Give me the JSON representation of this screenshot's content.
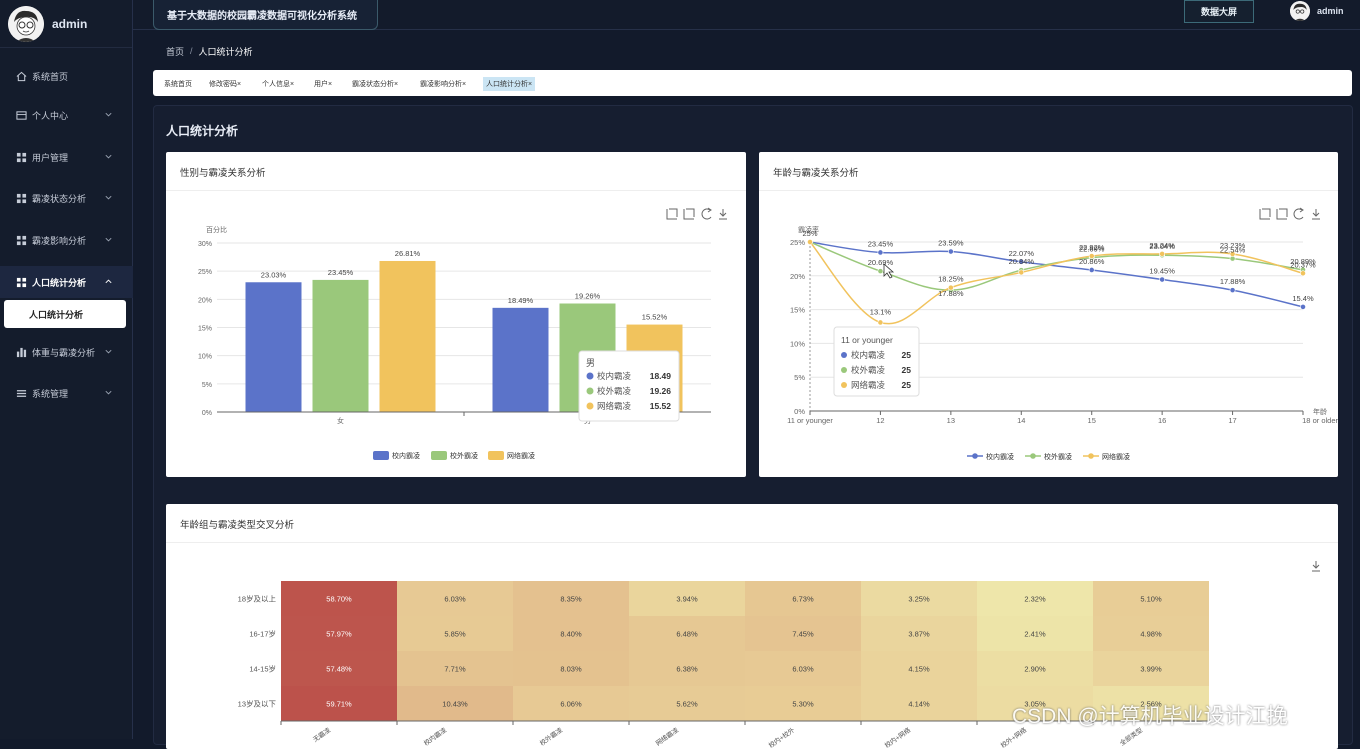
{
  "sidebar": {
    "username": "admin",
    "menu": [
      {
        "label": "系统首页",
        "icon": "home-icon"
      },
      {
        "label": "个人中心",
        "icon": "profile-card-icon"
      },
      {
        "label": "用户管理",
        "icon": "grid-icon"
      },
      {
        "label": "霸凌状态分析",
        "icon": "grid-icon"
      },
      {
        "label": "霸凌影响分析",
        "icon": "grid-icon"
      },
      {
        "label": "人口统计分析",
        "icon": "grid-icon"
      },
      {
        "label": "体重与霸凌分析",
        "icon": "bar-chart-icon"
      },
      {
        "label": "系统管理",
        "icon": "list-icon"
      }
    ],
    "active_sub": "人口统计分析"
  },
  "header": {
    "system_title": "基于大数据的校园霸凌数据可视化分析系统",
    "screen_button": "数据大屏",
    "username": "admin"
  },
  "breadcrumb": {
    "home": "首页",
    "separator": "/",
    "current": "人口统计分析"
  },
  "tabs": [
    {
      "label": "系统首页",
      "closable": ""
    },
    {
      "label": "修改密码",
      "closable": "×"
    },
    {
      "label": "个人信息",
      "closable": "×"
    },
    {
      "label": "用户",
      "closable": "×"
    },
    {
      "label": "霸凌状态分析",
      "closable": "×"
    },
    {
      "label": "霸凌影响分析",
      "closable": "×"
    },
    {
      "label": "人口统计分析",
      "closable": "×"
    }
  ],
  "page": {
    "title": "人口统计分析"
  },
  "cards": {
    "gender": {
      "title": "性别与霸凌关系分析"
    },
    "age": {
      "title": "年龄与霸凌关系分析"
    },
    "heat": {
      "title": "年龄组与霸凌类型交叉分析"
    }
  },
  "colors": {
    "blue": "#5b73c9",
    "green": "#9ac87b",
    "yellow": "#f1c35d"
  },
  "watermark": "CSDN @计算机毕业设计江挽",
  "chart_data": [
    {
      "type": "bar",
      "title": "性别与霸凌关系分析",
      "ylabel": "百分比",
      "ylim": [
        0,
        30
      ],
      "yticks": [
        "0%",
        "5%",
        "10%",
        "15%",
        "20%",
        "25%",
        "30%"
      ],
      "categories": [
        "女",
        "男"
      ],
      "series": [
        {
          "name": "校内霸凌",
          "values": [
            23.03,
            18.49
          ],
          "labels": [
            "23.03%",
            "18.49%"
          ]
        },
        {
          "name": "校外霸凌",
          "values": [
            23.45,
            19.26
          ],
          "labels": [
            "23.45%",
            "19.26%"
          ]
        },
        {
          "name": "网络霸凌",
          "values": [
            26.81,
            15.52
          ],
          "labels": [
            "26.81%",
            "15.52%"
          ]
        }
      ],
      "tooltip": {
        "title": "男",
        "rows": [
          {
            "name": "校内霸凌",
            "value": "18.49"
          },
          {
            "name": "校外霸凌",
            "value": "19.26"
          },
          {
            "name": "网络霸凌",
            "value": "15.52"
          }
        ]
      }
    },
    {
      "type": "line",
      "title": "年龄与霸凌关系分析",
      "ylabel": "霸凌率",
      "xlabel": "年龄",
      "ylim": [
        0,
        25
      ],
      "yticks": [
        "0%",
        "5%",
        "10%",
        "15%",
        "20%",
        "25%"
      ],
      "categories": [
        "11 or younger",
        "12",
        "13",
        "14",
        "15",
        "16",
        "17",
        "18 or older"
      ],
      "series": [
        {
          "name": "校内霸凌",
          "values": [
            25,
            23.45,
            23.59,
            22.07,
            20.86,
            19.45,
            17.88,
            15.4
          ],
          "labels": [
            "25%",
            "23.45%",
            "23.59%",
            "22.07%",
            "20.86%",
            "19.45%",
            "17.88%",
            "15.4%"
          ]
        },
        {
          "name": "校外霸凌",
          "values": [
            25,
            20.69,
            17.88,
            20.84,
            22.69,
            23.04,
            22.54,
            20.89
          ],
          "labels": [
            "",
            "20.69%",
            "17.88%",
            "20.84%",
            "22.69%",
            "23.04%",
            "22.54%",
            "20.89%"
          ]
        },
        {
          "name": "网络霸凌",
          "values": [
            25,
            13.1,
            18.25,
            20.5,
            22.92,
            23.24,
            23.23,
            20.37
          ],
          "labels": [
            "",
            "13.1%",
            "18.25%",
            "",
            "22.92%",
            "23.24%",
            "23.23%",
            "20.37%"
          ]
        }
      ],
      "tooltip": {
        "title": "11 or younger",
        "rows": [
          {
            "name": "校内霸凌",
            "value": "25"
          },
          {
            "name": "校外霸凌",
            "value": "25"
          },
          {
            "name": "网络霸凌",
            "value": "25"
          }
        ]
      }
    },
    {
      "type": "heatmap",
      "title": "年龄组与霸凌类型交叉分析",
      "rows": [
        "18岁及以上",
        "16-17岁",
        "14-15岁",
        "13岁及以下"
      ],
      "columns": [
        "无霸凌",
        "校内霸凌",
        "校外霸凌",
        "网络霸凌",
        "校内+校外",
        "校内+网络",
        "校外+网络",
        "全部类型"
      ],
      "values": [
        [
          58.7,
          6.03,
          8.35,
          3.94,
          6.73,
          3.25,
          2.32,
          5.1
        ],
        [
          57.97,
          5.85,
          8.4,
          6.48,
          7.45,
          3.87,
          2.41,
          4.98
        ],
        [
          57.48,
          7.71,
          8.03,
          6.38,
          6.03,
          4.15,
          2.9,
          3.99
        ],
        [
          59.71,
          10.43,
          6.06,
          5.62,
          5.3,
          4.14,
          3.05,
          2.56
        ]
      ],
      "labels": [
        [
          "58.70%",
          "6.03%",
          "8.35%",
          "3.94%",
          "6.73%",
          "3.25%",
          "2.32%",
          "5.10%"
        ],
        [
          "57.97%",
          "5.85%",
          "8.40%",
          "6.48%",
          "7.45%",
          "3.87%",
          "2.41%",
          "4.98%"
        ],
        [
          "57.48%",
          "7.71%",
          "8.03%",
          "6.38%",
          "6.03%",
          "4.15%",
          "2.90%",
          "3.99%"
        ],
        [
          "59.71%",
          "10.43%",
          "6.06%",
          "5.62%",
          "5.30%",
          "4.14%",
          "3.05%",
          "2.56%"
        ]
      ]
    }
  ]
}
